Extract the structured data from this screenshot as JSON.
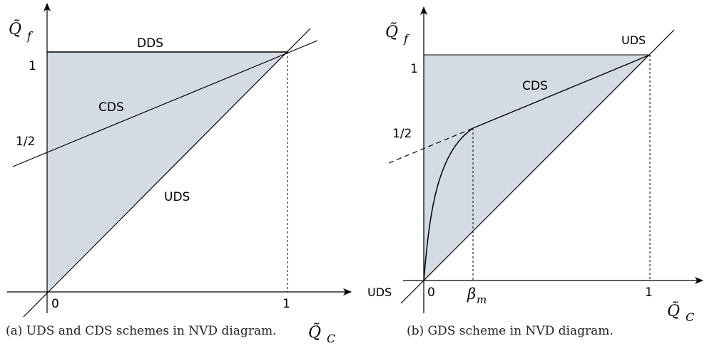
{
  "colors": {
    "shade": "#d5dbe3",
    "line": "#000000"
  },
  "left": {
    "y_axis_label": "Q̃",
    "y_axis_sub": "f",
    "x_axis_label": "Q̃",
    "x_axis_sub": "C",
    "tick_1_y": "1",
    "tick_half_y": "1/2",
    "tick_0": "0",
    "tick_1_x": "1",
    "label_dds": "DDS",
    "label_cds": "CDS",
    "label_uds": "UDS",
    "caption": "(a) UDS and CDS schemes in NVD diagram."
  },
  "right": {
    "y_axis_label": "Q̃",
    "y_axis_sub": "f",
    "x_axis_label": "Q̃",
    "x_axis_sub": "C",
    "tick_1_y": "1",
    "tick_half_y": "1/2",
    "tick_0": "0",
    "tick_1_x": "1",
    "tick_beta": "β",
    "tick_beta_sub": "m",
    "label_uds_top": "UDS",
    "label_uds_left": "UDS",
    "label_cds": "CDS",
    "caption": "(b) GDS scheme in NVD diagram."
  }
}
